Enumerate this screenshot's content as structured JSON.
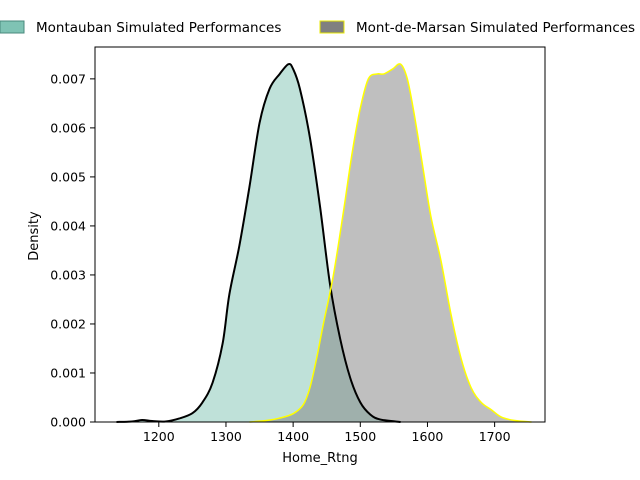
{
  "chart_data": {
    "type": "area",
    "xlabel": "Home_Rtng",
    "ylabel": "Density",
    "xlim": [
      1105,
      1775
    ],
    "ylim": [
      0,
      0.00765
    ],
    "x_ticks": [
      1200,
      1300,
      1400,
      1500,
      1600,
      1700
    ],
    "y_ticks": [
      0.0,
      0.001,
      0.002,
      0.003,
      0.004,
      0.005,
      0.006,
      0.007
    ],
    "y_tick_labels": [
      "0.000",
      "0.001",
      "0.002",
      "0.003",
      "0.004",
      "0.005",
      "0.006",
      "0.007"
    ],
    "x_tick_labels": [
      "1200",
      "1300",
      "1400",
      "1500",
      "1600",
      "1700"
    ],
    "legend_placement": "top, above plot",
    "grid": false,
    "series": [
      {
        "name": "Montauban Simulated Performances",
        "fill_color": "#7fc3b4",
        "line_color": "#000000",
        "points": [
          [
            1137,
            0.0
          ],
          [
            1160,
            1e-05
          ],
          [
            1175,
            4e-05
          ],
          [
            1190,
            2e-05
          ],
          [
            1210,
            1e-05
          ],
          [
            1230,
            7e-05
          ],
          [
            1250,
            0.00018
          ],
          [
            1265,
            0.0004
          ],
          [
            1280,
            0.0008
          ],
          [
            1295,
            0.0016
          ],
          [
            1305,
            0.0026
          ],
          [
            1320,
            0.0036
          ],
          [
            1335,
            0.0048
          ],
          [
            1350,
            0.0061
          ],
          [
            1365,
            0.0068
          ],
          [
            1380,
            0.0071
          ],
          [
            1393,
            0.0073
          ],
          [
            1400,
            0.0072
          ],
          [
            1410,
            0.0068
          ],
          [
            1425,
            0.0058
          ],
          [
            1440,
            0.0044
          ],
          [
            1455,
            0.0028
          ],
          [
            1470,
            0.0017
          ],
          [
            1485,
            0.0009
          ],
          [
            1500,
            0.0004
          ],
          [
            1515,
            0.00015
          ],
          [
            1530,
            5e-05
          ],
          [
            1560,
            0.0
          ]
        ]
      },
      {
        "name": "Mont-de-Marsan Simulated Performances",
        "fill_color": "#808080",
        "line_color": "#ffff00",
        "points": [
          [
            1335,
            0.0
          ],
          [
            1360,
            3e-05
          ],
          [
            1380,
            8e-05
          ],
          [
            1400,
            0.00017
          ],
          [
            1415,
            0.00035
          ],
          [
            1425,
            0.0007
          ],
          [
            1435,
            0.0013
          ],
          [
            1445,
            0.002
          ],
          [
            1460,
            0.003
          ],
          [
            1475,
            0.0043
          ],
          [
            1488,
            0.0055
          ],
          [
            1500,
            0.0064
          ],
          [
            1512,
            0.007
          ],
          [
            1525,
            0.0071
          ],
          [
            1535,
            0.0071
          ],
          [
            1548,
            0.0072
          ],
          [
            1560,
            0.0073
          ],
          [
            1570,
            0.007
          ],
          [
            1580,
            0.0063
          ],
          [
            1592,
            0.0053
          ],
          [
            1605,
            0.0042
          ],
          [
            1620,
            0.0033
          ],
          [
            1635,
            0.0022
          ],
          [
            1650,
            0.0013
          ],
          [
            1665,
            0.0007
          ],
          [
            1680,
            0.0004
          ],
          [
            1695,
            0.00025
          ],
          [
            1710,
            0.0001
          ],
          [
            1730,
            3e-05
          ],
          [
            1755,
            0.0
          ]
        ]
      }
    ]
  }
}
